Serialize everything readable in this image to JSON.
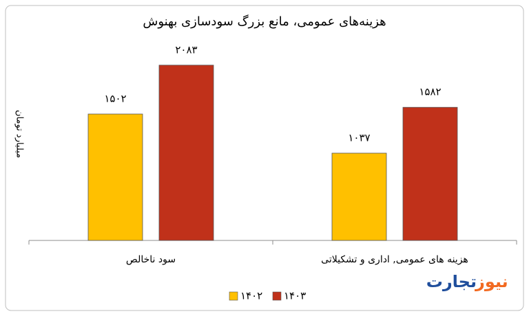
{
  "chart_data": {
    "type": "bar",
    "title": "هزینه‌های عمومی، مانع بزرگ سودسازی بهنوش",
    "y_label": "میلیارد تومان",
    "categories": [
      "سود ناخالص",
      "هزینه های عمومی, اداری و تشکیلاتی"
    ],
    "series": [
      {
        "name": "۱۴۰۲",
        "color": "#ffc000",
        "values": [
          1502,
          1037
        ],
        "value_labels": [
          "۱۵۰۲",
          "۱۰۳۷"
        ]
      },
      {
        "name": "۱۴۰۳",
        "color": "#c0311a",
        "values": [
          2083,
          1582
        ],
        "value_labels": [
          "۲۰۸۳",
          "۱۵۸۲"
        ]
      }
    ],
    "ylim": [
      0,
      2400
    ]
  },
  "logo": {
    "first": "تجارت",
    "second": "نیوز"
  }
}
